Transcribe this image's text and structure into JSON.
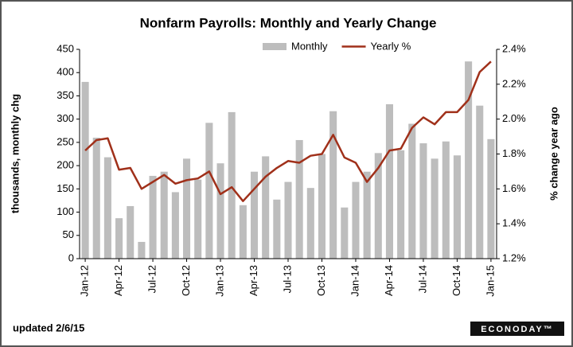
{
  "chart_data": {
    "type": "bar_line",
    "title": "Nonfarm Payrolls: Monthly and Yearly Change",
    "y_label": "thousands, monthly chg",
    "y2_label": "% change year ago",
    "footnote": "updated 2/6/15",
    "logo": "ECONODAY™",
    "categories": [
      "Jan-12",
      null,
      null,
      "Apr-12",
      null,
      null,
      "Jul-12",
      null,
      null,
      "Oct-12",
      null,
      null,
      "Jan-13",
      null,
      null,
      "Apr-13",
      null,
      null,
      "Jul-13",
      null,
      null,
      "Oct-13",
      null,
      null,
      "Jan-14",
      null,
      null,
      "Apr-14",
      null,
      null,
      "Jul-14",
      null,
      null,
      "Oct-14",
      null,
      null,
      "Jan-15"
    ],
    "series": [
      {
        "name": "Monthly",
        "type": "bar",
        "color": "#bdbdbd",
        "axis": "y",
        "values": [
          380,
          260,
          218,
          87,
          113,
          36,
          178,
          187,
          143,
          215,
          170,
          292,
          205,
          315,
          115,
          187,
          220,
          127,
          165,
          255,
          152,
          225,
          317,
          110,
          165,
          187,
          227,
          332,
          233,
          290,
          248,
          215,
          252,
          222,
          424,
          329,
          257
        ]
      },
      {
        "name": "Yearly %",
        "type": "line",
        "color": "#a0301a",
        "axis": "y2",
        "values": [
          1.82,
          1.88,
          1.89,
          1.71,
          1.72,
          1.6,
          1.64,
          1.68,
          1.63,
          1.65,
          1.66,
          1.7,
          1.57,
          1.61,
          1.53,
          1.6,
          1.67,
          1.72,
          1.76,
          1.75,
          1.79,
          1.8,
          1.91,
          1.78,
          1.75,
          1.64,
          1.72,
          1.82,
          1.83,
          1.95,
          2.01,
          1.97,
          2.04,
          2.04,
          2.11,
          2.27,
          2.33
        ]
      }
    ],
    "ylim": [
      0,
      450
    ],
    "yticks": [
      0,
      50,
      100,
      150,
      200,
      250,
      300,
      350,
      400,
      450
    ],
    "y2lim": [
      1.2,
      2.4
    ],
    "y2ticks": [
      {
        "value": 1.2,
        "label": "1.2%"
      },
      {
        "value": 1.4,
        "label": "1.4%"
      },
      {
        "value": 1.6,
        "label": "1.6%"
      },
      {
        "value": 1.8,
        "label": "1.8%"
      },
      {
        "value": 2.0,
        "label": "2.0%"
      },
      {
        "value": 2.2,
        "label": "2.2%"
      },
      {
        "value": 2.4,
        "label": "2.4%"
      }
    ],
    "grid": false
  }
}
